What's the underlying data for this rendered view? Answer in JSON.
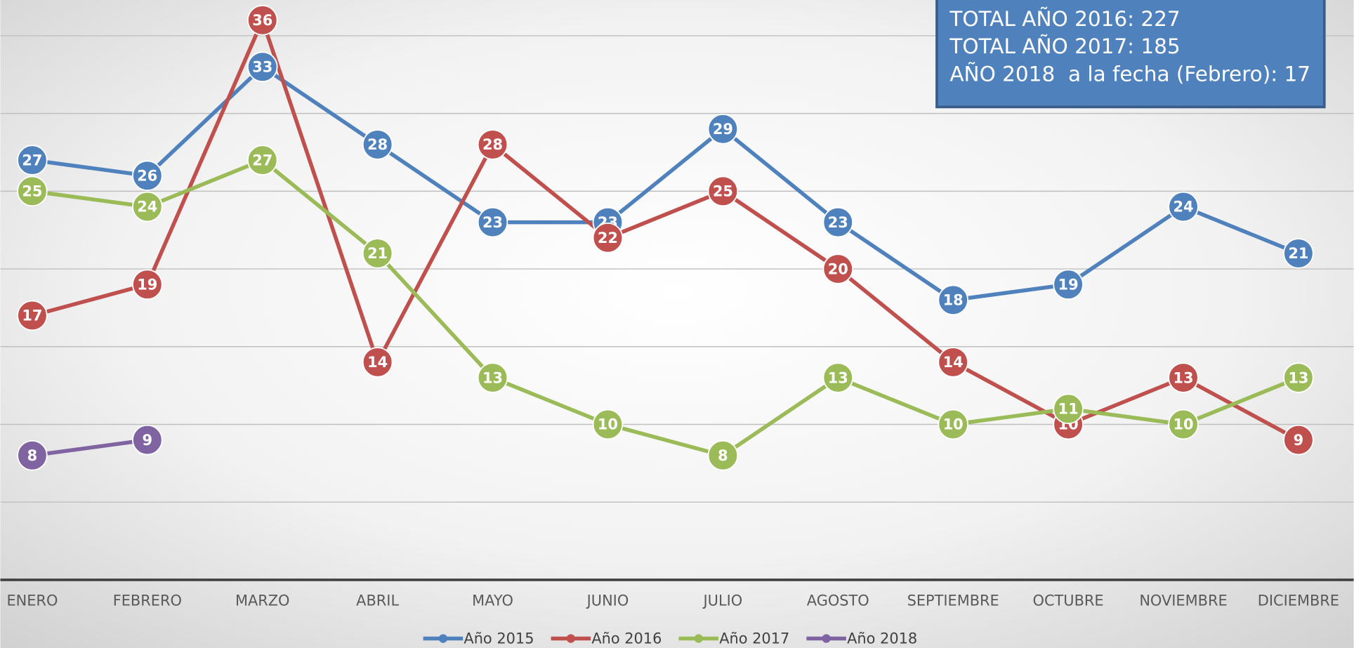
{
  "chart_data": {
    "type": "line",
    "categories": [
      "ENERO",
      "FEBRERO",
      "MARZO",
      "ABRIL",
      "MAYO",
      "JUNIO",
      "JULIO",
      "AGOSTO",
      "SEPTIEMBRE",
      "OCTUBRE",
      "NOVIEMBRE",
      "DICIEMBRE"
    ],
    "series": [
      {
        "name": "Año 2015",
        "color": "#4f81bd",
        "values": [
          27,
          26,
          33,
          28,
          23,
          23,
          29,
          23,
          18,
          19,
          24,
          21
        ]
      },
      {
        "name": "Año 2016",
        "color": "#c0504d",
        "values": [
          17,
          19,
          36,
          14,
          28,
          22,
          25,
          20,
          14,
          10,
          13,
          9
        ]
      },
      {
        "name": "Año 2017",
        "color": "#9bbb59",
        "values": [
          25,
          24,
          27,
          21,
          13,
          10,
          8,
          13,
          10,
          11,
          10,
          13
        ]
      },
      {
        "name": "Año 2018",
        "color": "#8064a2",
        "values": [
          8,
          9,
          null,
          null,
          null,
          null,
          null,
          null,
          null,
          null,
          null,
          null
        ]
      }
    ],
    "ylim": [
      0,
      37.3
    ],
    "yticks": [
      0,
      5,
      10,
      15,
      20,
      25,
      30,
      35
    ],
    "grid": true,
    "annotations": [
      "TOTAL AÑO 2016: 227",
      "TOTAL AÑO 2017: 185",
      "AÑO 2018  a la fecha (Febrero): 17"
    ]
  }
}
